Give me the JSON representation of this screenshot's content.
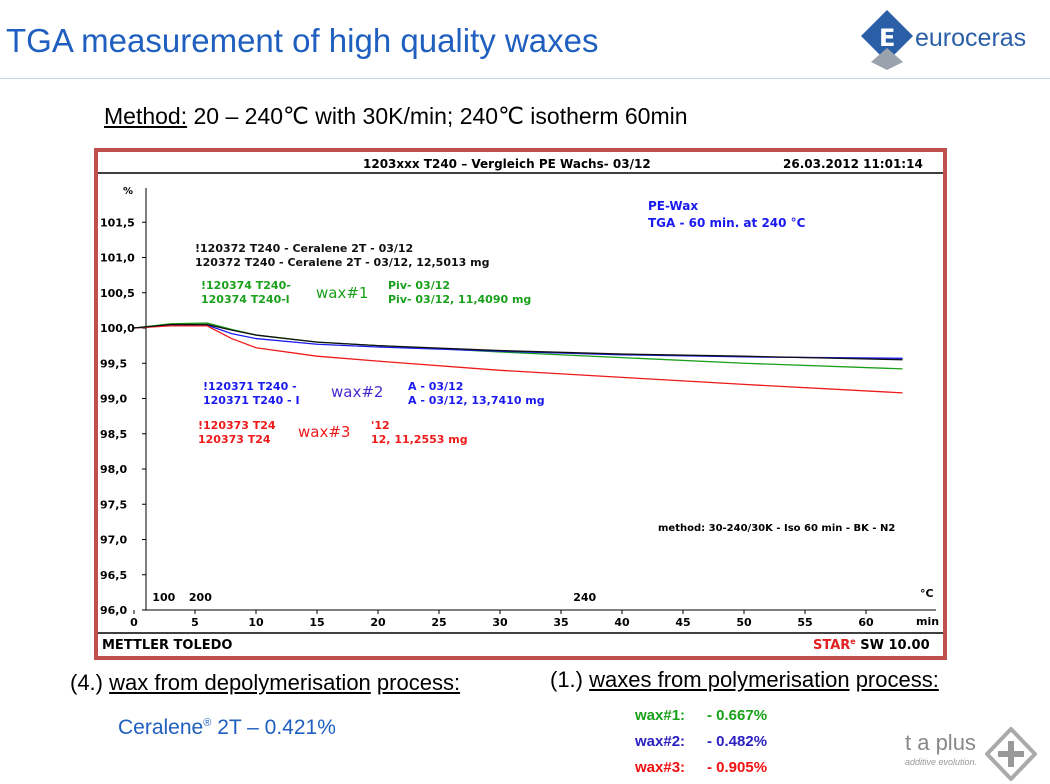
{
  "slide": {
    "title": "TGA measurement of high quality waxes",
    "method_label": "Method:",
    "method_text": "20 – 240℃ with 30K/min; 240℃ isotherm 60min",
    "logo": "euroceras",
    "logo_letter": "E",
    "left_heading_prefix": "(4.)",
    "left_heading_u1": "wax from depolymerisation",
    "left_heading_u2": "process:",
    "ceralene_name": "Ceralene",
    "ceralene_reg": "®",
    "ceralene_value": "2T – 0.421%",
    "right_heading_prefix": "(1.)",
    "right_heading_u1": "waxes from polymerisation",
    "right_heading_u2": "process:",
    "results": [
      {
        "label": "wax#1:",
        "value": "- 0.667%",
        "color": "#1aa01a"
      },
      {
        "label": "wax#2:",
        "value": "- 0.482%",
        "color": "#2a1fc0"
      },
      {
        "label": "wax#3:",
        "value": "- 0.905%",
        "color": "#f01010"
      }
    ],
    "taplus": "t a plus",
    "taplus_sub": "additive evolution."
  },
  "chart_data": {
    "type": "line",
    "title": "1203xxx T240 – Vergleich PE Wachs- 03/12",
    "timestamp": "26.03.2012 11:01:14",
    "header_note": [
      "PE-Wax",
      "TGA - 60 min. at 240 °C"
    ],
    "method_note": "method: 30-240/30K - Iso 60 min - BK - N2",
    "footer_left": "METTLER TOLEDO",
    "footer_right_star": "STAR",
    "footer_right_reg": "e",
    "footer_right": "SW 10.00",
    "ylabel": "%",
    "xlabel": "min",
    "x2label": "°C",
    "ylim": [
      96.0,
      102.0
    ],
    "xlim": [
      0,
      63
    ],
    "yticks": [
      "101,5",
      "101,0",
      "100,5",
      "100,0",
      "99,5",
      "99,0",
      "98,5",
      "98,0",
      "97,5",
      "97,0",
      "96,5",
      "96,0"
    ],
    "ytick_values": [
      101.5,
      101.0,
      100.5,
      100.0,
      99.5,
      99.0,
      98.5,
      98.0,
      97.5,
      97.0,
      96.5,
      96.0
    ],
    "xticks": [
      0,
      5,
      10,
      15,
      20,
      25,
      30,
      35,
      40,
      45,
      50,
      55,
      60
    ],
    "temp_ticks": [
      {
        "label": "100",
        "x": 1.5
      },
      {
        "label": "200",
        "x": 4.5
      },
      {
        "label": "240",
        "x": 36
      }
    ],
    "series": [
      {
        "name": "wax#1",
        "color": "#1aa01a",
        "labels": [
          "!120374 T240-",
          "120374 T240-l",
          "Piv- 03/12",
          "Piv- 03/12, 11,4090 mg"
        ],
        "x": [
          0,
          3,
          6,
          8,
          10,
          15,
          20,
          30,
          40,
          50,
          63
        ],
        "y": [
          100,
          100.06,
          100.07,
          99.98,
          99.9,
          99.8,
          99.75,
          99.66,
          99.58,
          99.5,
          99.42
        ]
      },
      {
        "name": "wax#2",
        "color": "#1a1af0",
        "labels": [
          "!120371 T240 -",
          "120371 T240 - I",
          "A - 03/12",
          "A - 03/12, 13,7410 mg"
        ],
        "x": [
          0,
          3,
          6,
          8,
          10,
          15,
          20,
          30,
          40,
          50,
          63
        ],
        "y": [
          100,
          100.04,
          100.04,
          99.92,
          99.85,
          99.77,
          99.73,
          99.67,
          99.62,
          99.59,
          99.57
        ]
      },
      {
        "name": "wax#3",
        "color": "#f01a1a",
        "labels": [
          "!120373 T24",
          "120373 T24",
          "'12",
          "12, 11,2553 mg"
        ],
        "x": [
          0,
          3,
          6,
          8,
          10,
          15,
          20,
          30,
          40,
          50,
          63
        ],
        "y": [
          100,
          100.03,
          100.03,
          99.85,
          99.72,
          99.6,
          99.53,
          99.4,
          99.3,
          99.2,
          99.08
        ]
      },
      {
        "name": "",
        "color": "#111111",
        "labels": [
          "!120372 T240 - Ceralene 2T - 03/12",
          "120372 T240 - Ceralene 2T - 03/12, 12,5013 mg"
        ],
        "x": [
          0,
          3,
          6,
          8,
          10,
          15,
          20,
          30,
          40,
          50,
          63
        ],
        "y": [
          100,
          100.05,
          100.05,
          99.97,
          99.9,
          99.8,
          99.75,
          99.68,
          99.63,
          99.6,
          99.55
        ]
      }
    ]
  }
}
